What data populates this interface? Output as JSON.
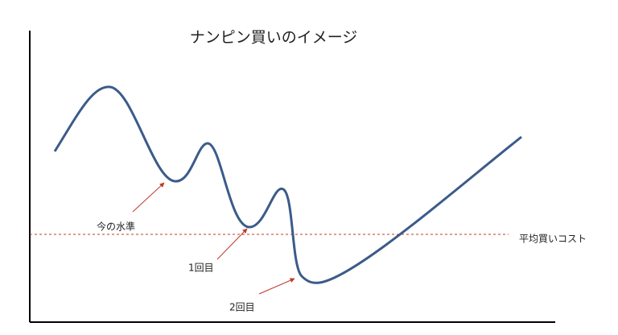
{
  "title": "ナンピン買いのイメージ",
  "annotations": {
    "current": "今の水準",
    "first": "1回目",
    "second": "2回目",
    "average": "平均買いコスト"
  }
}
